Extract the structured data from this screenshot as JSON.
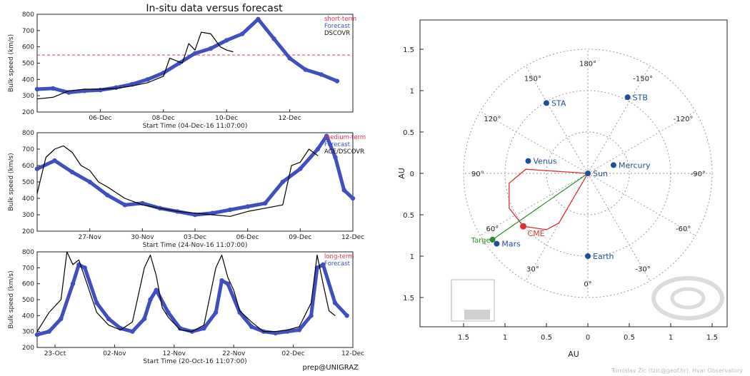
{
  "figure_title": "In-situ data versus forecast",
  "credit_left": "prep@UNIGRAZ",
  "credit_right": "Tomislav Žic (tzic@geof.hr), Hvar Observatory",
  "colors": {
    "forecast": "#3f4fbf",
    "observed": "#000000",
    "threshold": "#e8324a",
    "cme": "#e03030",
    "target": "#2f8a2f",
    "body": "#1f4f9a",
    "grid": "#9a9a9a"
  },
  "chart_data": [
    {
      "type": "line",
      "panel": "short-term",
      "xlabel": "Start Time (04-Dec-16 11:07:00)",
      "ylabel": "Bulk speed (km/s)",
      "ylim": [
        200,
        800
      ],
      "yticks": [
        200,
        300,
        400,
        500,
        600,
        700,
        800
      ],
      "xlim": [
        0,
        10
      ],
      "xtick_values": [
        2,
        4,
        6,
        8
      ],
      "xtick_labels": [
        "06-Dec",
        "08-Dec",
        "10-Dec",
        "12-Dec"
      ],
      "threshold": 550,
      "legend": [
        "short-term",
        "Forecast",
        "DSCOVR"
      ],
      "series": [
        {
          "name": "Forecast",
          "x": [
            0,
            0.5,
            1,
            1.5,
            2,
            2.5,
            3,
            3.5,
            4,
            4.5,
            5,
            5.5,
            6,
            6.5,
            7,
            7.5,
            8,
            8.5,
            9,
            9.5
          ],
          "values": [
            340,
            345,
            320,
            330,
            335,
            350,
            370,
            400,
            440,
            500,
            560,
            590,
            640,
            680,
            770,
            650,
            530,
            460,
            430,
            390
          ]
        },
        {
          "name": "DSCOVR",
          "x": [
            0,
            0.5,
            1,
            1.5,
            2,
            2.5,
            3,
            3.5,
            4,
            4.2,
            4.6,
            4.8,
            5,
            5.2,
            5.5,
            5.8,
            6,
            6.2
          ],
          "values": [
            280,
            290,
            330,
            340,
            340,
            345,
            360,
            380,
            420,
            530,
            500,
            620,
            580,
            690,
            680,
            600,
            580,
            570
          ]
        }
      ]
    },
    {
      "type": "line",
      "panel": "medium-term",
      "xlabel": "Start Time (24-Nov-16 11:07:00)",
      "ylabel": "Bulk speed (km/s)",
      "ylim": [
        200,
        800
      ],
      "yticks": [
        200,
        300,
        400,
        500,
        600,
        700,
        800
      ],
      "xlim": [
        0,
        18
      ],
      "xtick_values": [
        3,
        6,
        9,
        12,
        15,
        18
      ],
      "xtick_labels": [
        "27-Nov",
        "30-Nov",
        "03-Dec",
        "06-Dec",
        "09-Dec",
        "12-Dec"
      ],
      "legend": [
        "medium-term",
        "Forecast",
        "ACE/DSCOVR"
      ],
      "series": [
        {
          "name": "Forecast",
          "x": [
            0,
            1,
            2,
            3,
            4,
            5,
            6,
            7,
            8,
            9,
            10,
            11,
            12,
            13,
            14,
            15,
            16,
            16.5,
            17,
            17.5,
            18
          ],
          "values": [
            580,
            630,
            560,
            500,
            420,
            360,
            370,
            340,
            320,
            300,
            310,
            330,
            350,
            370,
            500,
            580,
            700,
            780,
            650,
            450,
            400
          ]
        },
        {
          "name": "ACE/DSCOVR",
          "x": [
            0,
            0.5,
            1,
            1.5,
            2,
            2.5,
            3,
            3.5,
            4,
            5,
            6,
            7,
            8,
            9,
            10,
            11,
            12,
            13,
            14,
            14.5,
            15,
            15.5,
            16
          ],
          "values": [
            430,
            650,
            700,
            720,
            680,
            600,
            570,
            500,
            470,
            400,
            360,
            340,
            320,
            310,
            300,
            290,
            320,
            340,
            360,
            600,
            620,
            700,
            660
          ]
        }
      ]
    },
    {
      "type": "line",
      "panel": "long-term",
      "xlabel": "Start Time (20-Oct-16 11:07:00)",
      "ylabel": "Bulk speed (km/s)",
      "ylim": [
        200,
        800
      ],
      "yticks": [
        200,
        300,
        400,
        500,
        600,
        700,
        800
      ],
      "xlim": [
        0,
        53
      ],
      "xtick_values": [
        3,
        13,
        23,
        33,
        43,
        53
      ],
      "xtick_labels": [
        "23-Oct",
        "02-Nov",
        "12-Nov",
        "22-Nov",
        "02-Dec",
        "12-Dec"
      ],
      "legend": [
        "long-term",
        "Forecast"
      ],
      "series": [
        {
          "name": "Forecast",
          "x": [
            0,
            2,
            4,
            6,
            7,
            8,
            10,
            12,
            14,
            16,
            18,
            19,
            20,
            22,
            24,
            26,
            28,
            30,
            31,
            32,
            34,
            36,
            38,
            40,
            42,
            44,
            46,
            47,
            48,
            50,
            52
          ],
          "values": [
            280,
            300,
            380,
            600,
            720,
            700,
            480,
            380,
            320,
            300,
            380,
            500,
            560,
            420,
            320,
            300,
            320,
            420,
            620,
            600,
            420,
            330,
            300,
            290,
            300,
            310,
            400,
            700,
            720,
            480,
            400
          ]
        },
        {
          "name": "Observed",
          "x": [
            0,
            2,
            4,
            5,
            6,
            7,
            8,
            10,
            12,
            14,
            16,
            18,
            19,
            20,
            21,
            22,
            24,
            26,
            28,
            30,
            31,
            32,
            33,
            34,
            36,
            38,
            40,
            42,
            44,
            46,
            47,
            48,
            49,
            50
          ],
          "values": [
            300,
            420,
            500,
            800,
            720,
            750,
            640,
            420,
            340,
            310,
            360,
            700,
            780,
            650,
            450,
            390,
            310,
            300,
            340,
            700,
            780,
            640,
            560,
            430,
            360,
            300,
            300,
            310,
            330,
            480,
            780,
            600,
            430,
            400
          ]
        }
      ]
    },
    {
      "type": "scatter",
      "panel": "polar",
      "xlabel": "AU",
      "ylabel": "AU",
      "xlim": [
        -1.5,
        1.5
      ],
      "ylim": [
        -1.5,
        1.5
      ],
      "ring_radii": [
        0.5,
        1.0,
        1.5
      ],
      "spoke_angles": [
        0,
        30,
        60,
        90,
        120,
        150,
        180,
        -150,
        -120,
        -90,
        -60,
        -30
      ],
      "angle_labels": [
        "0°",
        "30°",
        "60°",
        "90°",
        "120°",
        "150°",
        "180°",
        "-150°",
        "-120°",
        "-90°",
        "-60°",
        "-30°"
      ],
      "tick_values": [
        1.5,
        1,
        0.5,
        0,
        0.5,
        1,
        1.5
      ],
      "tick_labels": [
        "1.5",
        "1",
        "0.5",
        "0",
        "0.5",
        "1",
        "1.5"
      ],
      "bodies": [
        {
          "name": "Sun",
          "x": 0,
          "y": 0
        },
        {
          "name": "Mercury",
          "x": 0.31,
          "y": 0.1
        },
        {
          "name": "Venus",
          "x": -0.72,
          "y": 0.15
        },
        {
          "name": "Earth",
          "x": 0.0,
          "y": -1.0
        },
        {
          "name": "Mars",
          "x": -1.1,
          "y": -0.85
        },
        {
          "name": "STA",
          "x": -0.5,
          "y": 0.85
        },
        {
          "name": "STB",
          "x": 0.48,
          "y": 0.92
        }
      ],
      "target": {
        "name": "Target",
        "x": -1.15,
        "y": -0.8
      },
      "cme": {
        "name": "CME",
        "x": -0.78,
        "y": -0.64
      },
      "cme_front": [
        [
          0,
          0
        ],
        [
          -0.75,
          0.05
        ],
        [
          -0.95,
          -0.12
        ],
        [
          -0.95,
          -0.42
        ],
        [
          -0.78,
          -0.64
        ],
        [
          -0.5,
          -0.68
        ],
        [
          -0.35,
          -0.6
        ],
        [
          0,
          0
        ]
      ]
    }
  ]
}
